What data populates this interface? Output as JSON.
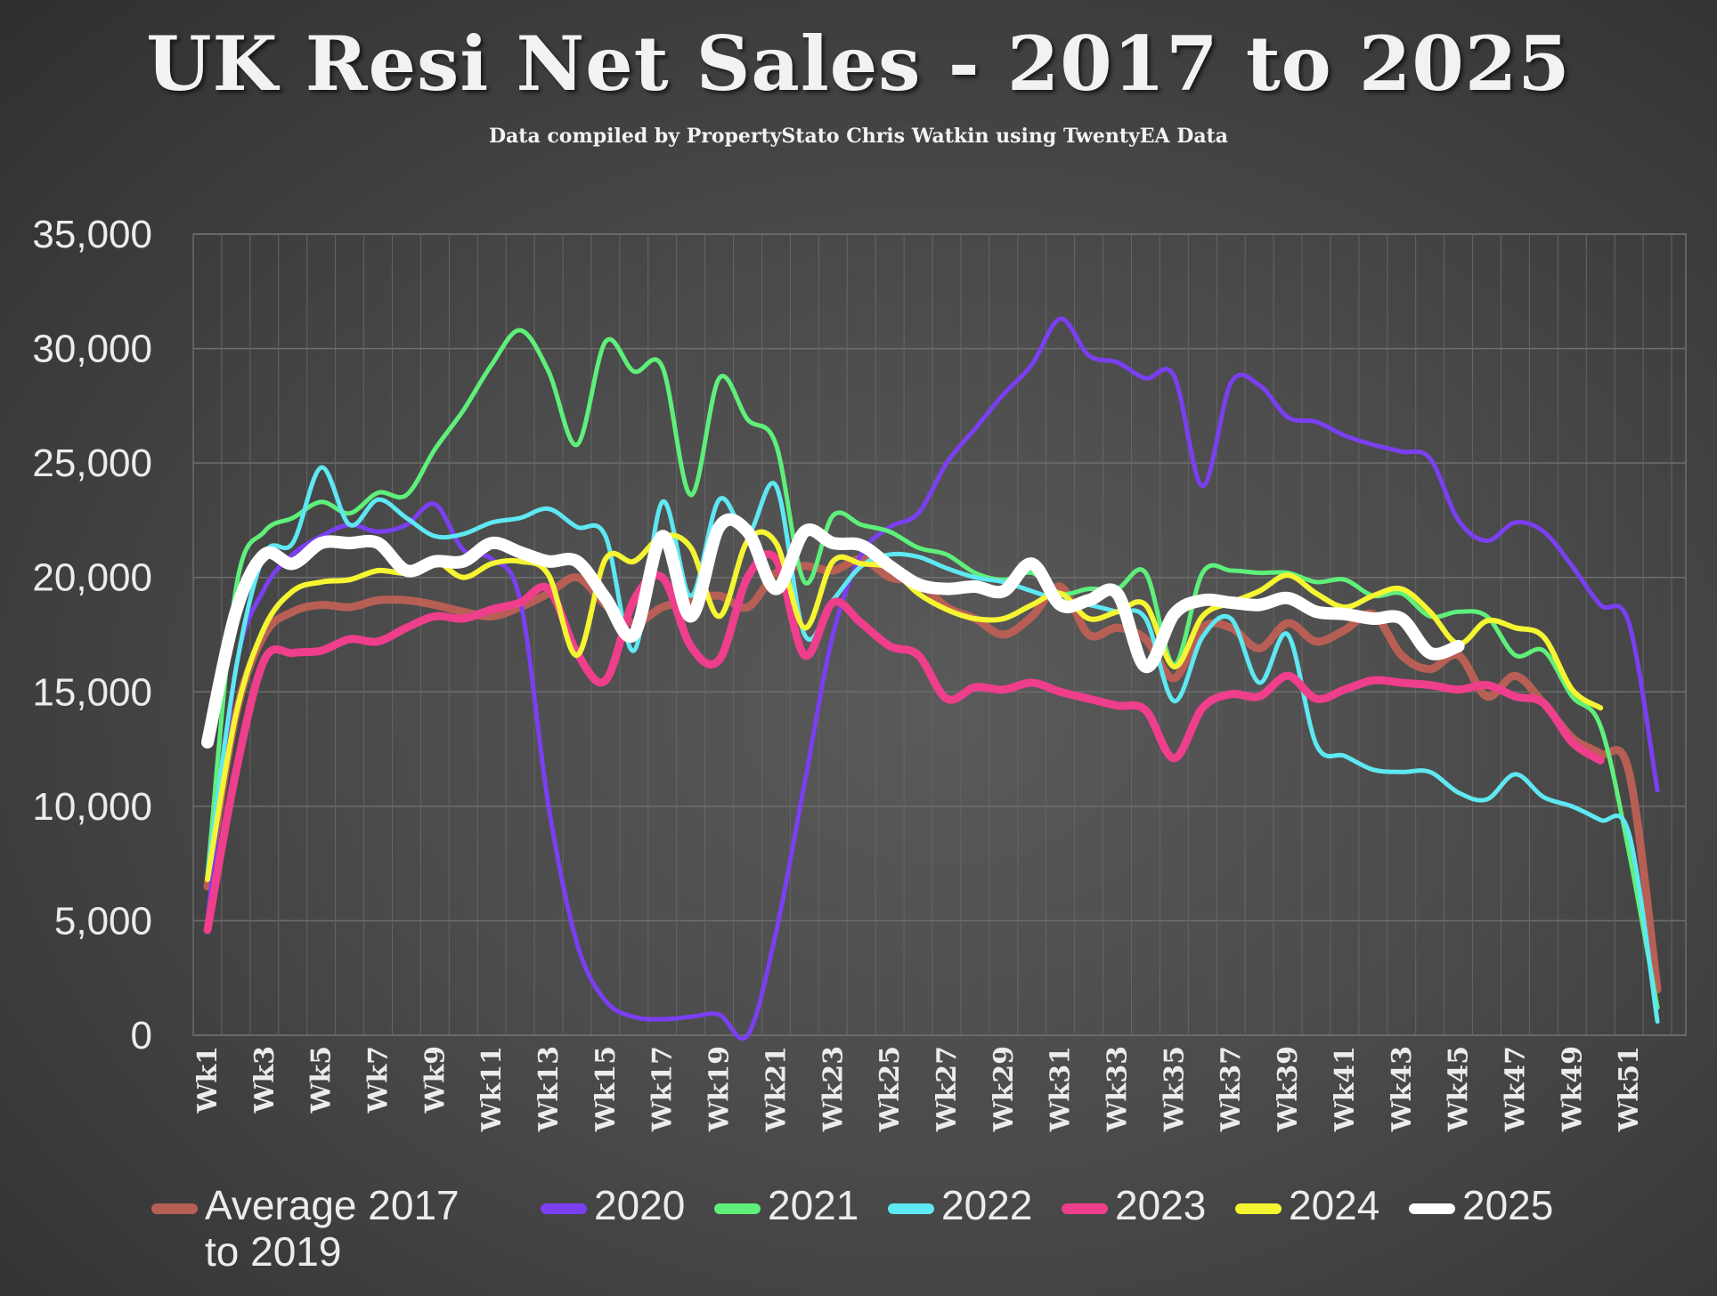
{
  "title": "UK  Resi Net Sales - 2017 to 2025",
  "subtitle": "Data compiled by PropertyStato Chris Watkin using TwentyEA Data",
  "chart_data": {
    "type": "line",
    "title": "UK  Resi Net Sales - 2017 to 2025",
    "subtitle": "Data compiled by PropertyStato Chris Watkin using TwentyEA Data",
    "ylim": [
      0,
      35000
    ],
    "yticks": [
      "0",
      "5,000",
      "10,000",
      "15,000",
      "20,000",
      "25,000",
      "30,000",
      "35,000"
    ],
    "ytick_values": [
      0,
      5000,
      10000,
      15000,
      20000,
      25000,
      30000,
      35000
    ],
    "xtick_labels": [
      "Wk1",
      "Wk3",
      "Wk5",
      "Wk7",
      "Wk9",
      "Wk11",
      "Wk13",
      "Wk15",
      "Wk17",
      "Wk19",
      "Wk21",
      "Wk23",
      "Wk25",
      "Wk27",
      "Wk29",
      "Wk31",
      "Wk33",
      "Wk35",
      "Wk37",
      "Wk39",
      "Wk41",
      "Wk43",
      "Wk45",
      "Wk47",
      "Wk49",
      "Wk51"
    ],
    "x_weeks": 52,
    "grid": true,
    "legend_position": "bottom",
    "series": [
      {
        "name": "Average 2017 to 2019",
        "legend_lines": [
          "Average 2017",
          "to 2019"
        ],
        "color": "#b85f55",
        "width": 9,
        "values": [
          6500,
          14000,
          17500,
          18500,
          18800,
          18700,
          19000,
          19000,
          18800,
          18500,
          18300,
          18700,
          19300,
          20000,
          18800,
          18000,
          18700,
          19000,
          19200,
          18700,
          20200,
          20500,
          20300,
          20800,
          20000,
          19800,
          18700,
          18200,
          17500,
          18300,
          19600,
          17500,
          17800,
          17300,
          15600,
          17800,
          17800,
          16900,
          18000,
          17200,
          17700,
          18400,
          16600,
          16000,
          16600,
          14800,
          15700,
          14500,
          13000,
          12300,
          11500,
          2000
        ]
      },
      {
        "name": "2020",
        "color": "#7b3ff2",
        "width": 5,
        "values": [
          5000,
          16000,
          19500,
          21000,
          21800,
          22300,
          22000,
          22300,
          23200,
          21200,
          20800,
          19000,
          10000,
          4000,
          1500,
          800,
          700,
          800,
          900,
          0,
          4500,
          11000,
          17500,
          21000,
          22200,
          22800,
          25000,
          26500,
          28000,
          29300,
          31300,
          29700,
          29400,
          28700,
          28800,
          24000,
          28500,
          28400,
          27000,
          26800,
          26200,
          25800,
          25500,
          25200,
          22500,
          21600,
          22400,
          22000,
          20500,
          18800,
          18000,
          10700
        ]
      },
      {
        "name": "2021",
        "color": "#5ef07a",
        "width": 5,
        "values": [
          7000,
          19500,
          22000,
          22600,
          23300,
          22800,
          23700,
          23600,
          25600,
          27300,
          29300,
          30800,
          29000,
          25800,
          30300,
          29000,
          29200,
          23600,
          28700,
          26900,
          25800,
          19800,
          22700,
          22300,
          22000,
          21300,
          21000,
          20200,
          19900,
          20200,
          19300,
          19500,
          19500,
          20200,
          16200,
          20200,
          20300,
          20200,
          20200,
          19800,
          19900,
          19200,
          19300,
          18300,
          18500,
          18300,
          16600,
          16800,
          14800,
          13500,
          8000,
          1200
        ]
      },
      {
        "name": "2022",
        "color": "#5ee8f2",
        "width": 5,
        "values": [
          7000,
          16000,
          21000,
          21500,
          24800,
          22300,
          23400,
          22600,
          21800,
          21900,
          22400,
          22600,
          23000,
          22200,
          21800,
          16800,
          23300,
          19200,
          23400,
          21900,
          24000,
          17500,
          19000,
          20500,
          21000,
          20900,
          20400,
          20000,
          19800,
          19400,
          19000,
          18800,
          18500,
          18200,
          14600,
          17400,
          18200,
          15400,
          17500,
          12700,
          12200,
          11600,
          11500,
          11500,
          10600,
          10300,
          11400,
          10400,
          10000,
          9400,
          8800,
          600
        ]
      },
      {
        "name": "2023",
        "color": "#ef3e8c",
        "width": 9,
        "values": [
          4600,
          11500,
          16400,
          16700,
          16800,
          17300,
          17200,
          17800,
          18300,
          18200,
          18600,
          18900,
          19500,
          16700,
          15500,
          19000,
          20000,
          17000,
          16400,
          20000,
          20800,
          16600,
          18900,
          18000,
          17000,
          16600,
          14700,
          15200,
          15100,
          15400,
          15000,
          14700,
          14400,
          14200,
          12100,
          14300,
          14900,
          14800,
          15700,
          14700,
          15100,
          15500,
          15400,
          15300,
          15100,
          15300,
          14800,
          14500,
          12800,
          12000,
          null,
          null
        ]
      },
      {
        "name": "2024",
        "color": "#f5f532",
        "width": 6,
        "values": [
          6800,
          14000,
          17800,
          19400,
          19800,
          19900,
          20300,
          20200,
          20700,
          20000,
          20600,
          20700,
          20100,
          16600,
          20800,
          20700,
          21800,
          21300,
          18300,
          21600,
          21500,
          17800,
          20700,
          20600,
          20400,
          19300,
          18600,
          18200,
          18200,
          18800,
          19300,
          18200,
          18500,
          18800,
          16100,
          18300,
          18900,
          19400,
          20100,
          19300,
          18700,
          19200,
          19500,
          18500,
          17100,
          18100,
          17800,
          17400,
          15100,
          14300,
          null,
          null
        ]
      },
      {
        "name": "2025",
        "color": "#ffffff",
        "width": 14,
        "values": [
          12800,
          18500,
          21000,
          20600,
          21500,
          21500,
          21500,
          20300,
          20700,
          20700,
          21500,
          21100,
          20700,
          20700,
          19100,
          17500,
          21800,
          18300,
          22200,
          22000,
          19500,
          22000,
          21500,
          21400,
          20500,
          19700,
          19500,
          19600,
          19400,
          20600,
          18800,
          19000,
          19300,
          16100,
          18400,
          19000,
          18900,
          18800,
          19100,
          18500,
          18400,
          18200,
          18200,
          16700,
          17000,
          null,
          null,
          null,
          null,
          null,
          null,
          null
        ]
      }
    ]
  }
}
